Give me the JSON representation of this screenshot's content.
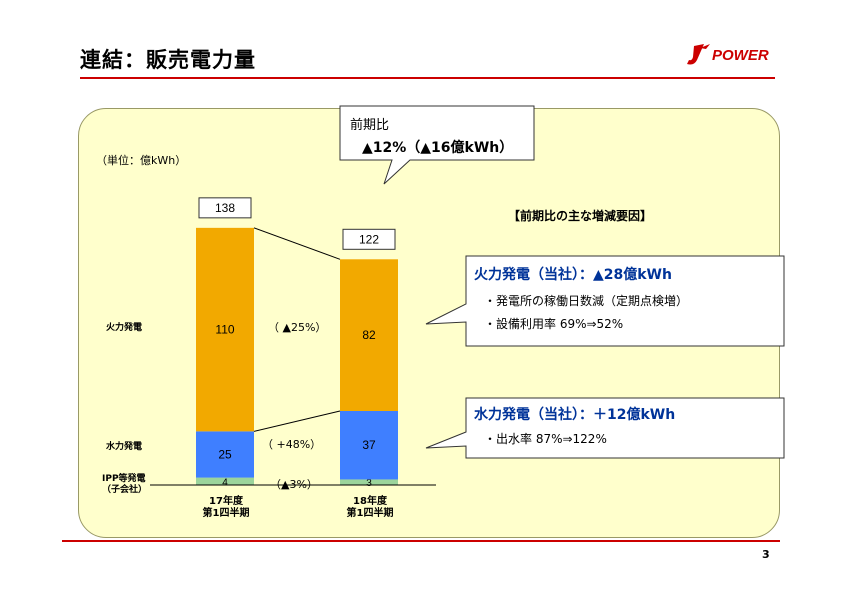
{
  "page_title": "連結：販売電力量",
  "logo_text": "POWER",
  "page_number": "3",
  "unit_label": "（単位：億kWh）",
  "factors_title": "【前期比の主な増減要因】",
  "summary_callout": {
    "line1": "前期比",
    "line2": "▲12%（▲16億kWh）"
  },
  "thermal_callout": {
    "title": "火力発電（当社）：▲28億kWh",
    "item1": "・発電所の稼働日数減（定期点検増）",
    "item2": "・設備利用率 69%⇒52%"
  },
  "hydro_callout": {
    "title": "水力発電（当社）：＋12億kWh",
    "item1": "・出水率 87%⇒122%"
  },
  "row_labels": {
    "thermal": "火力発電",
    "hydro": "水力発電",
    "ipp_line1": "IPP等発電",
    "ipp_line2": "（子会社）"
  },
  "colors": {
    "thermal": "#f2a900",
    "hydro": "#3f7fff",
    "ipp": "#9bd49b",
    "accent": "#cc0000",
    "panel": "#ffffcc"
  },
  "chart_data": {
    "type": "bar",
    "stacked": true,
    "categories": [
      "17年度\n第1四半期",
      "18年度\n第1四半期"
    ],
    "category_labels": [
      [
        "17年度",
        "第1四半期"
      ],
      [
        "18年度",
        "第1四半期"
      ]
    ],
    "series": [
      {
        "name": "IPP等発電（子会社）",
        "values": [
          4,
          3
        ],
        "change": "（▲3%）"
      },
      {
        "name": "水力発電",
        "values": [
          25,
          37
        ],
        "change": "（ +48%）"
      },
      {
        "name": "火力発電",
        "values": [
          110,
          82
        ],
        "change": "（ ▲25%）"
      }
    ],
    "totals": [
      138,
      122
    ],
    "ylabel": "（単位：億kWh）"
  }
}
